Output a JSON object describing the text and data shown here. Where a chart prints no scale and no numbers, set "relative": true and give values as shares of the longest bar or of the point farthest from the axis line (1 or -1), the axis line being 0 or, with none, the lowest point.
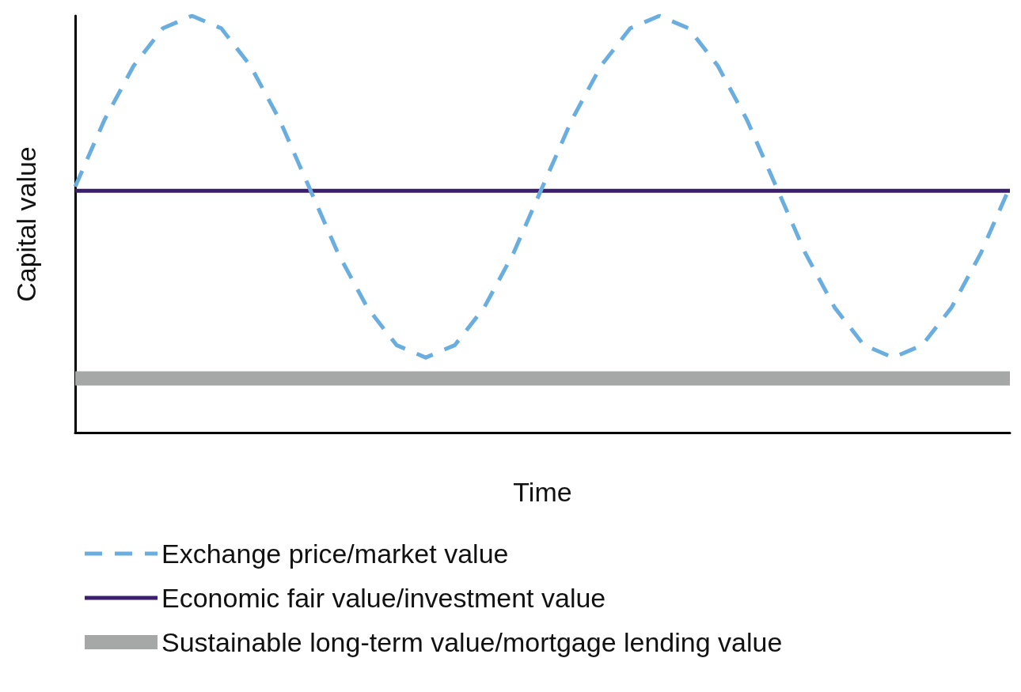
{
  "chart_data": {
    "type": "line",
    "relative": true,
    "xlabel": "Time",
    "ylabel": "Capital value",
    "grid": false,
    "legend": "bottom",
    "marker": "none",
    "categories": [
      null,
      null,
      null,
      null,
      null,
      null,
      null,
      null,
      null,
      null,
      null,
      null,
      null,
      null,
      null,
      null,
      null,
      null,
      null,
      null,
      null,
      null,
      null,
      null,
      null,
      null,
      null,
      null,
      null,
      null,
      null,
      null,
      null
    ],
    "series": [
      {
        "name": "Exchange price/market value",
        "color": "#6aaee0",
        "line_style": "dashed",
        "values": [
          0.59,
          0.75,
          0.88,
          0.97,
          1,
          0.97,
          0.88,
          0.75,
          0.59,
          0.43,
          0.3,
          0.21,
          0.18,
          0.21,
          0.3,
          0.43,
          0.59,
          0.75,
          0.88,
          0.97,
          1,
          0.97,
          0.88,
          0.75,
          0.59,
          0.43,
          0.3,
          0.21,
          0.18,
          0.21,
          0.3,
          0.43,
          0.59
        ]
      },
      {
        "name": "Economic fair value/investment value",
        "color": "#3b1f6e",
        "line_style": "solid",
        "values": [
          0.58,
          0.58,
          0.58,
          0.58,
          0.58,
          0.58,
          0.58,
          0.58,
          0.58,
          0.58,
          0.58,
          0.58,
          0.58,
          0.58,
          0.58,
          0.58,
          0.58,
          0.58,
          0.58,
          0.58,
          0.58,
          0.58,
          0.58,
          0.58,
          0.58,
          0.58,
          0.58,
          0.58,
          0.58,
          0.58,
          0.58,
          0.58,
          0.58
        ]
      },
      {
        "name": "Sustainable long-term value/mortgage lending value",
        "color": "#a6a8a8",
        "line_style": "solid",
        "values": [
          0.13,
          0.13,
          0.13,
          0.13,
          0.13,
          0.13,
          0.13,
          0.13,
          0.13,
          0.13,
          0.13,
          0.13,
          0.13,
          0.13,
          0.13,
          0.13,
          0.13,
          0.13,
          0.13,
          0.13,
          0.13,
          0.13,
          0.13,
          0.13,
          0.13,
          0.13,
          0.13,
          0.13,
          0.13,
          0.13,
          0.13,
          0.13,
          0.13
        ]
      }
    ]
  }
}
